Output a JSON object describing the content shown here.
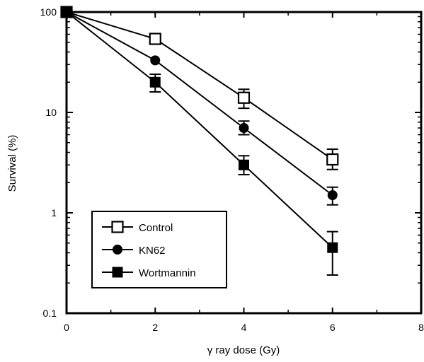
{
  "chart_data": {
    "type": "scatter",
    "xlabel": "γ ray dose (Gy)",
    "ylabel": "Survival (%)",
    "xlim": [
      0,
      8
    ],
    "ylim": [
      0.1,
      100
    ],
    "yscale": "log",
    "xticks": [
      0,
      2,
      4,
      6,
      8
    ],
    "yticks": [
      0.1,
      1,
      10,
      100
    ],
    "xtick_labels": [
      "0",
      "2",
      "4",
      "6",
      "8"
    ],
    "ytick_labels": [
      "0.1",
      "1",
      "10",
      "100"
    ],
    "grid": false,
    "legend_position": "bottom-left",
    "series": [
      {
        "name": "Control",
        "marker": "open-square",
        "x": [
          0,
          2,
          4,
          6
        ],
        "y": [
          100,
          54,
          14,
          3.4
        ],
        "err_low": [
          null,
          null,
          11,
          2.7
        ],
        "err_high": [
          null,
          null,
          17,
          4.3
        ]
      },
      {
        "name": "KN62",
        "marker": "filled-circle",
        "x": [
          0,
          2,
          4,
          6
        ],
        "y": [
          100,
          33,
          7,
          1.5
        ],
        "err_low": [
          null,
          null,
          6,
          1.2
        ],
        "err_high": [
          null,
          null,
          8.2,
          1.8
        ]
      },
      {
        "name": "Wortmannin",
        "marker": "filled-square",
        "x": [
          0,
          2,
          4,
          6
        ],
        "y": [
          100,
          20,
          3,
          0.45
        ],
        "err_low": [
          null,
          16,
          2.4,
          0.24
        ],
        "err_high": [
          null,
          24,
          3.7,
          0.65
        ]
      }
    ]
  }
}
